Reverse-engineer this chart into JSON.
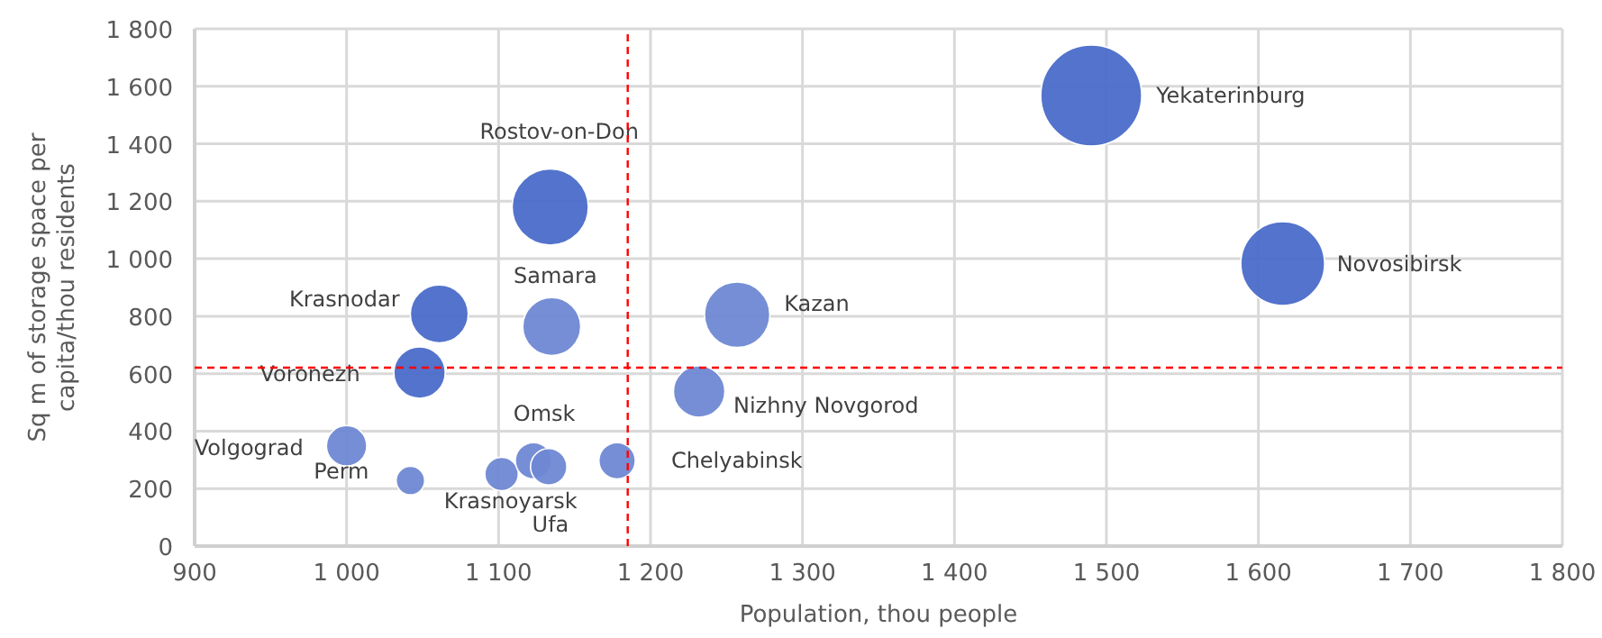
{
  "chart_data": {
    "type": "bubble",
    "xlabel": "Population, thou people",
    "ylabel": "Sq m of storage space per capita/thou residents",
    "relative": false,
    "x": [
      1490,
      1616,
      1134,
      1135,
      1257,
      1232,
      1061,
      1048,
      1000,
      1042,
      1102,
      1123,
      1133,
      1178
    ],
    "values": [
      1568,
      983,
      1180,
      764,
      805,
      538,
      808,
      604,
      349,
      228,
      251,
      297,
      276,
      297
    ],
    "sizes": [
      1,
      0.69,
      0.57,
      0.33,
      0.42,
      0.26,
      0.33,
      0.26,
      0.16,
      0.08,
      0.11,
      0.13,
      0.13,
      0.13
    ],
    "value_labels": [
      "Yekaterinburg",
      "Novosibirsk",
      "Rostov-on-Don",
      "Samara",
      "Kazan",
      "Nizhny Novgorod",
      "Krasnodar",
      "Voronezh",
      "Volgograd",
      "Perm",
      "Krasnoyarsk",
      "Omsk",
      "Ufa",
      "Chelyabinsk"
    ],
    "colors": [
      "#4a6bc9",
      "#4a6bc9",
      "#4a6bc9",
      "#6f88d3",
      "#6f88d3",
      "#6f88d3",
      "#4a6bc9",
      "#4a6bc9",
      "#6f88d3",
      "#6f88d3",
      "#6f88d3",
      "#6f88d3",
      "#6f88d3",
      "#6f88d3"
    ],
    "xlim": [
      900,
      1800
    ],
    "xticks": [
      900,
      {
        "value": 1000,
        "label": "1 000"
      },
      {
        "value": 1100,
        "label": "1 100"
      },
      {
        "value": 1200,
        "label": "1 200"
      },
      {
        "value": 1300,
        "label": "1 300"
      },
      {
        "value": 1400,
        "label": "1 400"
      },
      {
        "value": 1500,
        "label": "1 500"
      },
      {
        "value": 1600,
        "label": "1 600"
      },
      {
        "value": 1700,
        "label": "1 700"
      },
      {
        "value": 1800,
        "label": "1 800"
      }
    ],
    "ylim": [
      0,
      1800
    ],
    "yticks": [
      0,
      200,
      400,
      600,
      800,
      {
        "value": 1000,
        "label": "1 000"
      },
      {
        "value": 1200,
        "label": "1 200"
      },
      {
        "value": 1400,
        "label": "1 400"
      },
      {
        "value": 1600,
        "label": "1 600"
      },
      {
        "value": 1800,
        "label": "1 800"
      }
    ],
    "grid": true,
    "ref_lines": [
      {
        "axis": "x",
        "value": 1185,
        "color": "#ff0000",
        "line_style": "dashed"
      },
      {
        "axis": "y",
        "value": 621,
        "color": "#ff0000",
        "line_style": "dashed"
      }
    ]
  }
}
